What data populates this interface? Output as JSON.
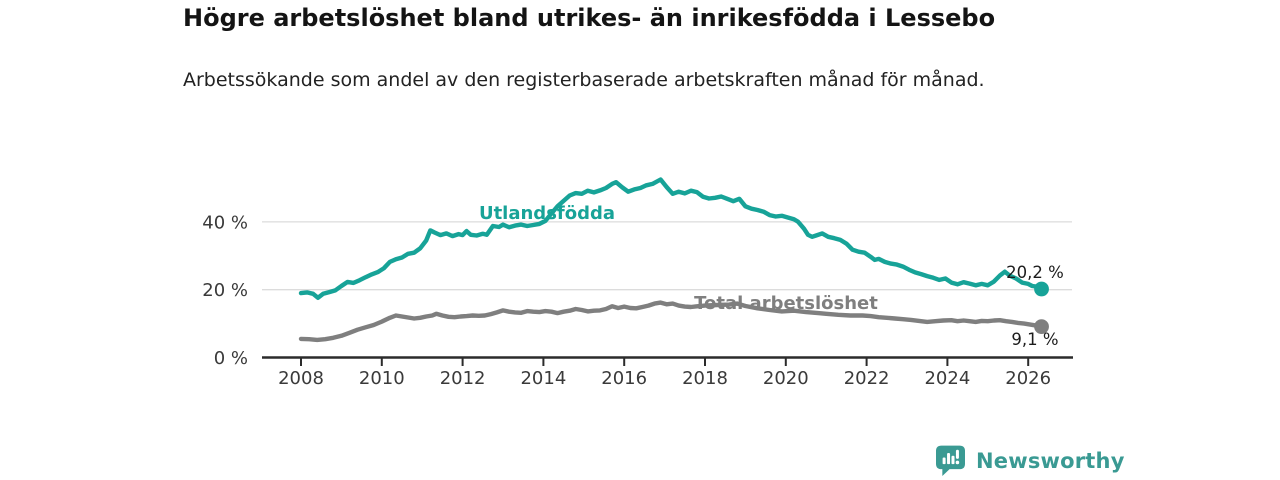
{
  "title": "Högre arbetslöshet bland utrikes- än inrikesfödda i Lessebo",
  "subtitle": "Arbetssökande som andel av den registerbaserade arbetskraften månad för månad.",
  "footer": {
    "brand": "Newsworthy",
    "logo_icon": "speech-bubble-bar-chart-icon",
    "brand_color": "#3a9a93"
  },
  "colors": {
    "foreign_born_line": "#17a398",
    "total_line": "#7f7f7f",
    "axis": "#2b2b2b",
    "gridline": "#dcdcdc",
    "tick_text": "#3a3a3a",
    "value_text": "#1c1c1c"
  },
  "chart_data": {
    "type": "line",
    "title": "Högre arbetslöshet bland utrikes- än inrikesfödda i Lessebo",
    "subtitle": "Arbetssökande som andel av den registerbaserade arbetskraften månad för månad.",
    "xlabel": "",
    "ylabel": "",
    "grid": "horizontal",
    "legend_position": "inline-labels",
    "xlim": [
      2007.6,
      2027.0
    ],
    "ylim": [
      0,
      55
    ],
    "x_ticks": [
      2008,
      2010,
      2012,
      2014,
      2016,
      2018,
      2020,
      2022,
      2024,
      2026
    ],
    "y_ticks": [
      {
        "value": 0,
        "label": "0 %"
      },
      {
        "value": 20,
        "label": "20 %"
      },
      {
        "value": 40,
        "label": "40 %"
      }
    ],
    "series": [
      {
        "name": "Utlandsfödda",
        "color": "#17a398",
        "end_label": "20,2 %",
        "end_value": 20.2,
        "points": [
          [
            2008.0,
            19.0
          ],
          [
            2008.15,
            19.2
          ],
          [
            2008.3,
            18.8
          ],
          [
            2008.42,
            17.6
          ],
          [
            2008.55,
            18.8
          ],
          [
            2008.7,
            19.3
          ],
          [
            2008.85,
            19.8
          ],
          [
            2009.0,
            21.1
          ],
          [
            2009.15,
            22.3
          ],
          [
            2009.3,
            22.0
          ],
          [
            2009.45,
            22.8
          ],
          [
            2009.6,
            23.7
          ],
          [
            2009.75,
            24.5
          ],
          [
            2009.9,
            25.2
          ],
          [
            2010.05,
            26.3
          ],
          [
            2010.2,
            28.2
          ],
          [
            2010.35,
            29.0
          ],
          [
            2010.5,
            29.5
          ],
          [
            2010.65,
            30.6
          ],
          [
            2010.8,
            30.9
          ],
          [
            2010.95,
            32.2
          ],
          [
            2011.1,
            34.5
          ],
          [
            2011.2,
            37.5
          ],
          [
            2011.3,
            36.9
          ],
          [
            2011.45,
            36.1
          ],
          [
            2011.6,
            36.6
          ],
          [
            2011.75,
            35.8
          ],
          [
            2011.9,
            36.4
          ],
          [
            2012.0,
            36.1
          ],
          [
            2012.1,
            37.3
          ],
          [
            2012.2,
            36.2
          ],
          [
            2012.35,
            36.0
          ],
          [
            2012.5,
            36.5
          ],
          [
            2012.6,
            36.2
          ],
          [
            2012.75,
            38.8
          ],
          [
            2012.9,
            38.5
          ],
          [
            2013.0,
            39.2
          ],
          [
            2013.15,
            38.4
          ],
          [
            2013.3,
            38.9
          ],
          [
            2013.45,
            39.2
          ],
          [
            2013.6,
            38.8
          ],
          [
            2013.75,
            39.1
          ],
          [
            2013.9,
            39.4
          ],
          [
            2014.05,
            40.3
          ],
          [
            2014.2,
            42.5
          ],
          [
            2014.35,
            44.6
          ],
          [
            2014.5,
            46.2
          ],
          [
            2014.65,
            47.8
          ],
          [
            2014.8,
            48.5
          ],
          [
            2014.95,
            48.3
          ],
          [
            2015.1,
            49.2
          ],
          [
            2015.25,
            48.7
          ],
          [
            2015.4,
            49.3
          ],
          [
            2015.55,
            50.0
          ],
          [
            2015.7,
            51.2
          ],
          [
            2015.8,
            51.7
          ],
          [
            2015.95,
            50.2
          ],
          [
            2016.1,
            48.9
          ],
          [
            2016.25,
            49.6
          ],
          [
            2016.4,
            50.0
          ],
          [
            2016.55,
            50.8
          ],
          [
            2016.7,
            51.2
          ],
          [
            2016.9,
            52.5
          ],
          [
            2017.05,
            50.3
          ],
          [
            2017.2,
            48.3
          ],
          [
            2017.35,
            48.9
          ],
          [
            2017.5,
            48.4
          ],
          [
            2017.65,
            49.2
          ],
          [
            2017.8,
            48.8
          ],
          [
            2017.95,
            47.4
          ],
          [
            2018.1,
            46.9
          ],
          [
            2018.25,
            47.1
          ],
          [
            2018.4,
            47.5
          ],
          [
            2018.55,
            46.8
          ],
          [
            2018.7,
            46.1
          ],
          [
            2018.85,
            46.8
          ],
          [
            2019.0,
            44.6
          ],
          [
            2019.15,
            43.9
          ],
          [
            2019.3,
            43.5
          ],
          [
            2019.45,
            43.0
          ],
          [
            2019.6,
            42.0
          ],
          [
            2019.75,
            41.6
          ],
          [
            2019.9,
            41.8
          ],
          [
            2020.05,
            41.3
          ],
          [
            2020.2,
            40.8
          ],
          [
            2020.3,
            40.1
          ],
          [
            2020.45,
            38.0
          ],
          [
            2020.55,
            36.2
          ],
          [
            2020.65,
            35.6
          ],
          [
            2020.75,
            36.0
          ],
          [
            2020.9,
            36.6
          ],
          [
            2021.05,
            35.6
          ],
          [
            2021.2,
            35.2
          ],
          [
            2021.35,
            34.7
          ],
          [
            2021.5,
            33.6
          ],
          [
            2021.65,
            31.8
          ],
          [
            2021.8,
            31.2
          ],
          [
            2021.95,
            30.9
          ],
          [
            2022.1,
            29.7
          ],
          [
            2022.2,
            28.8
          ],
          [
            2022.3,
            29.1
          ],
          [
            2022.45,
            28.2
          ],
          [
            2022.6,
            27.7
          ],
          [
            2022.75,
            27.4
          ],
          [
            2022.9,
            26.8
          ],
          [
            2023.05,
            25.9
          ],
          [
            2023.2,
            25.1
          ],
          [
            2023.35,
            24.6
          ],
          [
            2023.5,
            24.0
          ],
          [
            2023.65,
            23.5
          ],
          [
            2023.8,
            22.9
          ],
          [
            2023.95,
            23.3
          ],
          [
            2024.1,
            22.1
          ],
          [
            2024.25,
            21.6
          ],
          [
            2024.4,
            22.2
          ],
          [
            2024.55,
            21.8
          ],
          [
            2024.7,
            21.3
          ],
          [
            2024.85,
            21.7
          ],
          [
            2025.0,
            21.3
          ],
          [
            2025.15,
            22.4
          ],
          [
            2025.3,
            24.2
          ],
          [
            2025.42,
            25.3
          ],
          [
            2025.55,
            24.1
          ],
          [
            2025.7,
            23.3
          ],
          [
            2025.85,
            22.1
          ],
          [
            2026.0,
            21.7
          ],
          [
            2026.1,
            21.1
          ],
          [
            2026.2,
            20.9
          ],
          [
            2026.33,
            20.2
          ]
        ]
      },
      {
        "name": "Total arbetslöshet",
        "color": "#7f7f7f",
        "end_label": "9,1 %",
        "end_value": 9.1,
        "points": [
          [
            2008.0,
            5.5
          ],
          [
            2008.2,
            5.4
          ],
          [
            2008.4,
            5.2
          ],
          [
            2008.6,
            5.4
          ],
          [
            2008.8,
            5.8
          ],
          [
            2009.0,
            6.4
          ],
          [
            2009.2,
            7.3
          ],
          [
            2009.4,
            8.2
          ],
          [
            2009.6,
            8.9
          ],
          [
            2009.8,
            9.6
          ],
          [
            2010.0,
            10.6
          ],
          [
            2010.2,
            11.7
          ],
          [
            2010.35,
            12.4
          ],
          [
            2010.5,
            12.1
          ],
          [
            2010.65,
            11.8
          ],
          [
            2010.8,
            11.5
          ],
          [
            2010.95,
            11.7
          ],
          [
            2011.1,
            12.1
          ],
          [
            2011.25,
            12.4
          ],
          [
            2011.35,
            12.9
          ],
          [
            2011.5,
            12.4
          ],
          [
            2011.65,
            12.0
          ],
          [
            2011.8,
            11.9
          ],
          [
            2011.95,
            12.1
          ],
          [
            2012.1,
            12.2
          ],
          [
            2012.25,
            12.4
          ],
          [
            2012.4,
            12.3
          ],
          [
            2012.55,
            12.4
          ],
          [
            2012.7,
            12.8
          ],
          [
            2012.85,
            13.3
          ],
          [
            2013.0,
            13.9
          ],
          [
            2013.15,
            13.5
          ],
          [
            2013.3,
            13.3
          ],
          [
            2013.45,
            13.2
          ],
          [
            2013.6,
            13.7
          ],
          [
            2013.75,
            13.5
          ],
          [
            2013.9,
            13.4
          ],
          [
            2014.05,
            13.7
          ],
          [
            2014.2,
            13.5
          ],
          [
            2014.35,
            13.1
          ],
          [
            2014.5,
            13.5
          ],
          [
            2014.65,
            13.8
          ],
          [
            2014.8,
            14.3
          ],
          [
            2014.95,
            14.0
          ],
          [
            2015.1,
            13.6
          ],
          [
            2015.25,
            13.8
          ],
          [
            2015.4,
            13.9
          ],
          [
            2015.55,
            14.3
          ],
          [
            2015.7,
            15.1
          ],
          [
            2015.85,
            14.6
          ],
          [
            2016.0,
            15.0
          ],
          [
            2016.15,
            14.6
          ],
          [
            2016.3,
            14.5
          ],
          [
            2016.45,
            14.9
          ],
          [
            2016.6,
            15.3
          ],
          [
            2016.75,
            15.9
          ],
          [
            2016.9,
            16.2
          ],
          [
            2017.05,
            15.7
          ],
          [
            2017.2,
            15.9
          ],
          [
            2017.35,
            15.3
          ],
          [
            2017.5,
            15.0
          ],
          [
            2017.65,
            14.9
          ],
          [
            2017.8,
            15.1
          ],
          [
            2018.0,
            15.3
          ],
          [
            2018.3,
            15.5
          ],
          [
            2018.6,
            15.6
          ],
          [
            2018.8,
            15.9
          ],
          [
            2019.0,
            15.2
          ],
          [
            2019.3,
            14.5
          ],
          [
            2019.6,
            14.0
          ],
          [
            2019.9,
            13.6
          ],
          [
            2020.2,
            13.8
          ],
          [
            2020.5,
            13.4
          ],
          [
            2020.8,
            13.1
          ],
          [
            2021.0,
            12.9
          ],
          [
            2021.3,
            12.6
          ],
          [
            2021.6,
            12.4
          ],
          [
            2021.9,
            12.4
          ],
          [
            2022.1,
            12.2
          ],
          [
            2022.3,
            11.9
          ],
          [
            2022.5,
            11.7
          ],
          [
            2022.7,
            11.5
          ],
          [
            2022.9,
            11.3
          ],
          [
            2023.1,
            11.1
          ],
          [
            2023.3,
            10.8
          ],
          [
            2023.5,
            10.5
          ],
          [
            2023.7,
            10.7
          ],
          [
            2023.9,
            10.9
          ],
          [
            2024.1,
            11.0
          ],
          [
            2024.25,
            10.7
          ],
          [
            2024.4,
            10.9
          ],
          [
            2024.55,
            10.7
          ],
          [
            2024.7,
            10.5
          ],
          [
            2024.85,
            10.8
          ],
          [
            2025.0,
            10.7
          ],
          [
            2025.15,
            10.9
          ],
          [
            2025.3,
            11.0
          ],
          [
            2025.45,
            10.7
          ],
          [
            2025.6,
            10.5
          ],
          [
            2025.75,
            10.2
          ],
          [
            2025.9,
            10.0
          ],
          [
            2026.05,
            9.7
          ],
          [
            2026.2,
            9.4
          ],
          [
            2026.33,
            9.1
          ]
        ]
      }
    ]
  }
}
